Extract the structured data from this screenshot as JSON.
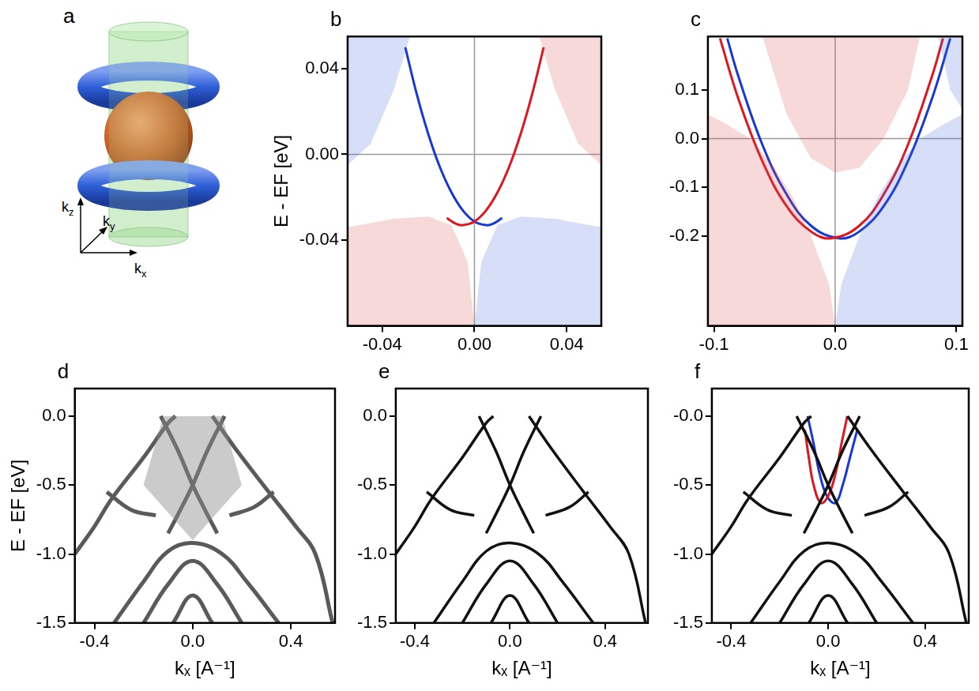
{
  "diagram": {
    "label": "a",
    "axes": [
      {
        "symbol": "k",
        "subscript": "z"
      },
      {
        "symbol": "k",
        "subscript": "y"
      },
      {
        "symbol": "k",
        "subscript": "x"
      }
    ]
  },
  "chart_data": [
    {
      "type": "line",
      "title": "b",
      "ylabel": "E - EF [eV]",
      "xlim": [
        -0.055,
        0.055
      ],
      "ylim": [
        -0.08,
        0.055
      ],
      "xticks": [
        -0.04,
        {
          "value": 0,
          "label": "0.00"
        },
        0.04
      ],
      "yticks": [
        -0.04,
        {
          "value": 0,
          "label": "0.00"
        },
        0.04
      ],
      "grid": false,
      "series": [
        {
          "type": "area",
          "color": "#e05050",
          "x": [
            -0.055,
            -0.055,
            -0.035,
            -0.02,
            -0.01,
            -0.003,
            0.0
          ],
          "values": [
            -0.08,
            -0.034,
            -0.03,
            -0.029,
            -0.033,
            -0.05,
            -0.08
          ]
        },
        {
          "type": "area",
          "color": "#4a6fe0",
          "x": [
            0.0,
            0.003,
            0.01,
            0.02,
            0.035,
            0.055,
            0.055
          ],
          "values": [
            -0.08,
            -0.05,
            -0.033,
            -0.029,
            -0.03,
            -0.034,
            -0.08
          ]
        },
        {
          "type": "area",
          "color": "#4a6fe0",
          "x": [
            -0.055,
            -0.055,
            -0.045,
            -0.035,
            -0.028
          ],
          "values": [
            0.055,
            -0.005,
            0.005,
            0.03,
            0.055
          ]
        },
        {
          "type": "area",
          "color": "#e05050",
          "x": [
            0.028,
            0.035,
            0.045,
            0.055,
            0.055
          ],
          "values": [
            0.055,
            0.03,
            0.005,
            -0.005,
            0.055
          ]
        },
        {
          "type": "line",
          "color": "#e0161e",
          "x": [
            -0.012,
            -0.008,
            -0.005,
            0.0,
            0.005,
            0.01,
            0.015,
            0.02,
            0.025,
            0.03
          ],
          "values": [
            -0.0297,
            -0.0324,
            -0.033,
            -0.0313,
            -0.0262,
            -0.0177,
            -0.0059,
            0.0094,
            0.028,
            0.05
          ]
        },
        {
          "type": "line",
          "color": "#1737d8",
          "x": [
            -0.03,
            -0.025,
            -0.02,
            -0.015,
            -0.01,
            -0.005,
            0.0,
            0.005,
            0.008,
            0.012
          ],
          "values": [
            0.05,
            0.028,
            0.0094,
            -0.0059,
            -0.0177,
            -0.0262,
            -0.0313,
            -0.033,
            -0.0324,
            -0.0297
          ]
        }
      ]
    },
    {
      "type": "line",
      "title": "c",
      "xlim": [
        -0.105,
        0.105
      ],
      "ylim": [
        -0.385,
        0.21
      ],
      "xticks": [
        -0.1,
        {
          "value": 0,
          "label": "0.0"
        },
        0.1
      ],
      "yticks": [
        -0.2,
        -0.1,
        {
          "value": 0,
          "label": "0.0"
        },
        0.1
      ],
      "grid": false,
      "series": [
        {
          "type": "area",
          "color": "#e05050",
          "x": [
            -0.105,
            -0.105,
            -0.09,
            -0.07,
            -0.05,
            -0.035,
            -0.02,
            -0.005,
            0.0
          ],
          "values": [
            -0.385,
            0.05,
            0.03,
            0.0,
            -0.06,
            -0.12,
            -0.2,
            -0.3,
            -0.385
          ]
        },
        {
          "type": "area",
          "color": "#4a6fe0",
          "x": [
            0.0,
            0.005,
            0.02,
            0.035,
            0.05,
            0.07,
            0.09,
            0.105,
            0.105
          ],
          "values": [
            -0.385,
            -0.3,
            -0.2,
            -0.12,
            -0.06,
            0.0,
            0.03,
            0.05,
            -0.385
          ]
        },
        {
          "type": "area",
          "color": "#e05050",
          "x": [
            -0.06,
            -0.04,
            -0.02,
            0.0,
            0.02,
            0.04,
            0.06,
            0.07
          ],
          "values": [
            0.21,
            0.05,
            -0.04,
            -0.07,
            -0.06,
            0.0,
            0.1,
            0.21
          ]
        },
        {
          "type": "area",
          "color": "#4a6fe0",
          "x": [
            0.085,
            0.095,
            0.105,
            0.105
          ],
          "values": [
            0.21,
            0.1,
            0.06,
            0.21
          ]
        },
        {
          "type": "line",
          "color": "#e0161e",
          "x": [
            -0.095,
            -0.08,
            -0.06,
            -0.04,
            -0.02,
            -0.003,
            0.02,
            0.04,
            0.06,
            0.08,
            0.089
          ],
          "values": [
            0.206,
            0.083,
            -0.047,
            -0.139,
            -0.191,
            -0.205,
            -0.179,
            -0.115,
            -0.013,
            0.129,
            0.206
          ]
        },
        {
          "type": "line",
          "color": "#1737d8",
          "x": [
            -0.089,
            -0.08,
            -0.06,
            -0.04,
            -0.02,
            0.003,
            0.02,
            0.04,
            0.06,
            0.08,
            0.095
          ],
          "values": [
            0.206,
            0.129,
            -0.013,
            -0.115,
            -0.179,
            -0.205,
            -0.191,
            -0.139,
            -0.047,
            0.083,
            0.206
          ]
        }
      ]
    },
    {
      "type": "line",
      "title": "d",
      "ylabel": "E - EF [eV]",
      "xlabel": "kₓ [A⁻¹]",
      "xlim": [
        -0.48,
        0.58
      ],
      "ylim": [
        -1.5,
        0.2
      ],
      "xticks": [
        -0.4,
        {
          "value": 0,
          "label": "0.0"
        },
        0.4
      ],
      "yticks": [
        -1.5,
        {
          "value": -1,
          "label": "-1.0"
        },
        -0.5,
        {
          "value": 0,
          "label": "0.0"
        }
      ],
      "grid": false,
      "series": [
        {
          "type": "area",
          "color": "#8c8c8c",
          "x": [
            -0.2,
            -0.12,
            0.12,
            0.2,
            0.0
          ],
          "values": [
            -0.5,
            0.0,
            0.0,
            -0.5,
            -0.9
          ]
        },
        {
          "type": "line",
          "color": "#5a5a5a",
          "x": [
            -0.48,
            -0.4,
            -0.33,
            -0.2,
            -0.1,
            -0.07
          ],
          "values": [
            -1.0,
            -0.8,
            -0.6,
            -0.3,
            -0.05,
            0.0
          ]
        },
        {
          "type": "line",
          "color": "#5a5a5a",
          "x": [
            0.08,
            0.18,
            0.31,
            0.42,
            0.5,
            0.57
          ],
          "values": [
            0.0,
            -0.25,
            -0.55,
            -0.8,
            -1.0,
            -1.5
          ]
        },
        {
          "type": "line",
          "color": "#5a5a5a",
          "x": [
            -0.32,
            -0.2,
            -0.1,
            0.0,
            0.12,
            0.22,
            0.35
          ],
          "values": [
            -1.5,
            -1.2,
            -0.98,
            -0.92,
            -1.0,
            -1.2,
            -1.5
          ]
        },
        {
          "type": "line",
          "color": "#5a5a5a",
          "x": [
            -0.2,
            -0.1,
            0.0,
            0.1,
            0.2
          ],
          "values": [
            -1.5,
            -1.22,
            -1.05,
            -1.22,
            -1.5
          ]
        },
        {
          "type": "line",
          "color": "#5a5a5a",
          "x": [
            -0.08,
            0.0,
            0.08
          ],
          "values": [
            -1.5,
            -1.3,
            -1.5
          ]
        },
        {
          "type": "line",
          "color": "#5a5a5a",
          "x": [
            -0.13,
            -0.06,
            0.0,
            0.05,
            0.1
          ],
          "values": [
            0.0,
            -0.25,
            -0.5,
            -0.68,
            -0.85
          ]
        },
        {
          "type": "line",
          "color": "#5a5a5a",
          "x": [
            -0.1,
            -0.05,
            0.0,
            0.06,
            0.13
          ],
          "values": [
            -0.85,
            -0.68,
            -0.5,
            -0.25,
            0.0
          ]
        },
        {
          "type": "line",
          "color": "#5a5a5a",
          "x": [
            -0.35,
            -0.25,
            -0.15
          ],
          "values": [
            -0.55,
            -0.68,
            -0.72
          ]
        },
        {
          "type": "line",
          "color": "#5a5a5a",
          "x": [
            0.15,
            0.25,
            0.33
          ],
          "values": [
            -0.72,
            -0.66,
            -0.55
          ]
        }
      ]
    },
    {
      "type": "line",
      "title": "e",
      "xlabel": "kₓ [A⁻¹]",
      "xlim": [
        -0.48,
        0.58
      ],
      "ylim": [
        -1.5,
        0.2
      ],
      "xticks": [
        -0.4,
        {
          "value": 0,
          "label": "0.0"
        },
        0.4
      ],
      "yticks": [
        -1.5,
        {
          "value": -1,
          "label": "-1.0"
        },
        -0.5,
        {
          "value": 0,
          "label": "0.0"
        }
      ],
      "grid": false,
      "series": [
        {
          "type": "line",
          "color": "#111111",
          "x": [
            -0.48,
            -0.4,
            -0.33,
            -0.2,
            -0.1,
            -0.07
          ],
          "values": [
            -1.0,
            -0.8,
            -0.6,
            -0.3,
            -0.05,
            0.0
          ]
        },
        {
          "type": "line",
          "color": "#111111",
          "x": [
            0.08,
            0.18,
            0.31,
            0.42,
            0.5,
            0.57
          ],
          "values": [
            0.0,
            -0.25,
            -0.55,
            -0.8,
            -1.0,
            -1.5
          ]
        },
        {
          "type": "line",
          "color": "#111111",
          "x": [
            -0.32,
            -0.2,
            -0.1,
            0.0,
            0.12,
            0.22,
            0.35
          ],
          "values": [
            -1.5,
            -1.2,
            -0.98,
            -0.92,
            -1.0,
            -1.2,
            -1.5
          ]
        },
        {
          "type": "line",
          "color": "#111111",
          "x": [
            -0.2,
            -0.1,
            0.0,
            0.1,
            0.2
          ],
          "values": [
            -1.5,
            -1.22,
            -1.05,
            -1.22,
            -1.5
          ]
        },
        {
          "type": "line",
          "color": "#111111",
          "x": [
            -0.08,
            0.0,
            0.08
          ],
          "values": [
            -1.5,
            -1.3,
            -1.5
          ]
        },
        {
          "type": "line",
          "color": "#111111",
          "x": [
            -0.13,
            -0.06,
            0.0,
            0.05,
            0.1
          ],
          "values": [
            0.0,
            -0.25,
            -0.5,
            -0.68,
            -0.85
          ]
        },
        {
          "type": "line",
          "color": "#111111",
          "x": [
            -0.1,
            -0.05,
            0.0,
            0.06,
            0.13
          ],
          "values": [
            -0.85,
            -0.68,
            -0.5,
            -0.25,
            0.0
          ]
        },
        {
          "type": "line",
          "color": "#111111",
          "x": [
            -0.35,
            -0.25,
            -0.15
          ],
          "values": [
            -0.55,
            -0.68,
            -0.72
          ]
        },
        {
          "type": "line",
          "color": "#111111",
          "x": [
            0.15,
            0.25,
            0.33
          ],
          "values": [
            -0.72,
            -0.66,
            -0.55
          ]
        }
      ]
    },
    {
      "type": "line",
      "title": "f",
      "xlabel": "kₓ [A⁻¹]",
      "xlim": [
        -0.48,
        0.58
      ],
      "ylim": [
        -1.5,
        0.2
      ],
      "xticks": [
        -0.4,
        {
          "value": 0,
          "label": "0.0"
        },
        0.4
      ],
      "yticks": [
        -1.5,
        {
          "value": -1,
          "label": "-1.0"
        },
        -0.5,
        {
          "value": 0,
          "label": "-0.0"
        }
      ],
      "grid": false,
      "series": [
        {
          "type": "line",
          "color": "#111111",
          "x": [
            -0.48,
            -0.4,
            -0.33,
            -0.2,
            -0.1,
            -0.07
          ],
          "values": [
            -1.0,
            -0.8,
            -0.6,
            -0.3,
            -0.05,
            0.0
          ]
        },
        {
          "type": "line",
          "color": "#111111",
          "x": [
            0.08,
            0.18,
            0.31,
            0.42,
            0.5,
            0.57
          ],
          "values": [
            0.0,
            -0.25,
            -0.55,
            -0.8,
            -1.0,
            -1.5
          ]
        },
        {
          "type": "line",
          "color": "#111111",
          "x": [
            -0.32,
            -0.2,
            -0.1,
            0.0,
            0.12,
            0.22,
            0.35
          ],
          "values": [
            -1.5,
            -1.2,
            -0.98,
            -0.92,
            -1.0,
            -1.2,
            -1.5
          ]
        },
        {
          "type": "line",
          "color": "#111111",
          "x": [
            -0.2,
            -0.1,
            0.0,
            0.1,
            0.2
          ],
          "values": [
            -1.5,
            -1.22,
            -1.05,
            -1.22,
            -1.5
          ]
        },
        {
          "type": "line",
          "color": "#111111",
          "x": [
            -0.08,
            0.0,
            0.08
          ],
          "values": [
            -1.5,
            -1.3,
            -1.5
          ]
        },
        {
          "type": "line",
          "color": "#111111",
          "x": [
            -0.13,
            -0.06,
            0.0,
            0.05,
            0.1
          ],
          "values": [
            0.0,
            -0.25,
            -0.5,
            -0.68,
            -0.85
          ]
        },
        {
          "type": "line",
          "color": "#111111",
          "x": [
            -0.1,
            -0.05,
            0.0,
            0.06,
            0.13
          ],
          "values": [
            -0.85,
            -0.68,
            -0.5,
            -0.25,
            0.0
          ]
        },
        {
          "type": "line",
          "color": "#111111",
          "x": [
            -0.35,
            -0.25,
            -0.15
          ],
          "values": [
            -0.55,
            -0.68,
            -0.72
          ]
        },
        {
          "type": "line",
          "color": "#111111",
          "x": [
            0.15,
            0.25,
            0.33
          ],
          "values": [
            -0.72,
            -0.66,
            -0.55
          ]
        },
        {
          "type": "line",
          "color": "#e0161e",
          "x": [
            -0.096,
            -0.08,
            -0.06,
            -0.03,
            0.0,
            0.03,
            0.055,
            0.079
          ],
          "values": [
            -0.1,
            -0.3,
            -0.5,
            -0.63,
            -0.58,
            -0.42,
            -0.2,
            0.0
          ]
        },
        {
          "type": "line",
          "color": "#1737d8",
          "x": [
            -0.085,
            -0.06,
            -0.035,
            -0.005,
            0.03,
            0.06,
            0.09,
            0.12
          ],
          "values": [
            0.0,
            -0.2,
            -0.42,
            -0.58,
            -0.63,
            -0.5,
            -0.3,
            -0.1
          ]
        }
      ]
    }
  ]
}
